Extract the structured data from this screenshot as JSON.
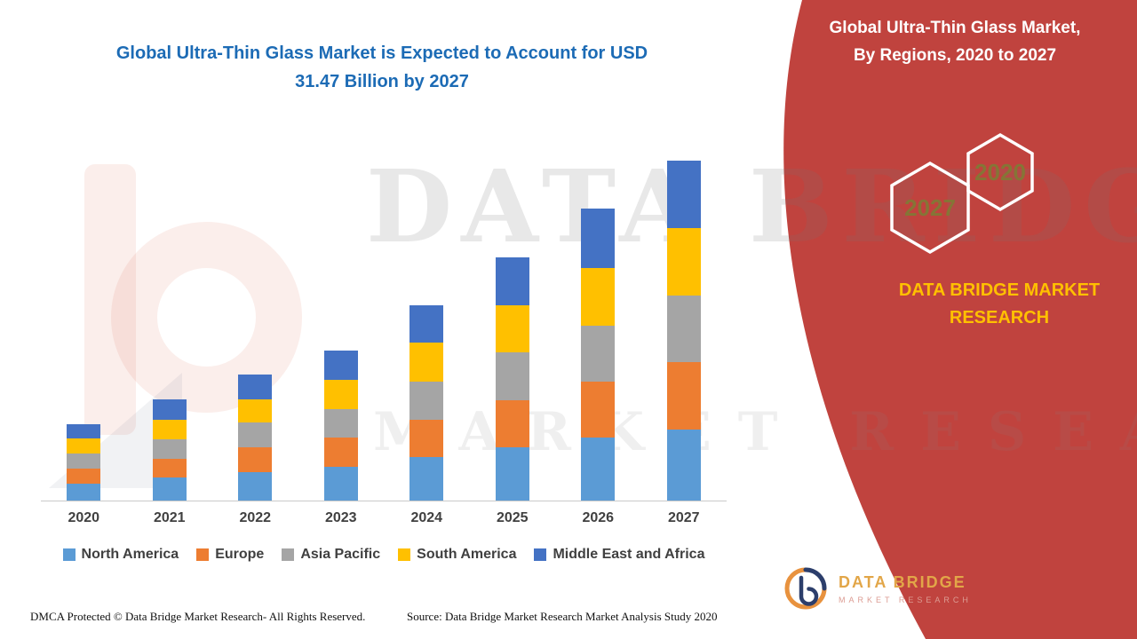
{
  "header": {
    "title_line1": "Global Ultra-Thin Glass Market is Expected to Account for USD",
    "title_line2": "31.47 Billion by 2027"
  },
  "side_panel": {
    "title_line1": "Global Ultra-Thin Glass Market,",
    "title_line2": "By Regions, 2020 to 2027",
    "hexagon_years": [
      "2027",
      "2020"
    ],
    "brand_line1": "DATA BRIDGE MARKET",
    "brand_line2": "RESEARCH",
    "logo_title": "DATA BRIDGE",
    "logo_subtitle": "MARKET RESEARCH",
    "bg_color": "#C0433E",
    "accent_yellow": "#FFC000",
    "hexagon_year_color": "#857536"
  },
  "watermark": {
    "line1": "DATA BRIDGE",
    "line2": "MARKET RESEARCH"
  },
  "footer": {
    "dmca": "DMCA Protected © Data Bridge Market Research- All Rights Reserved.",
    "source": "Source: Data Bridge Market Research Market Analysis Study 2020"
  },
  "chart_data": {
    "type": "bar",
    "stacked": true,
    "title": "Global Ultra-Thin Glass Market is Expected to Account for USD 31.47 Billion by 2027",
    "unit": "USD Billion",
    "total_2027_usd_billion": 31.47,
    "categories": [
      "2020",
      "2021",
      "2022",
      "2023",
      "2024",
      "2025",
      "2026",
      "2027"
    ],
    "series": [
      {
        "name": "North America",
        "color": "#5B9BD5",
        "values": [
          1.6,
          2.1,
          2.6,
          3.1,
          4.0,
          4.9,
          5.8,
          6.6
        ]
      },
      {
        "name": "Europe",
        "color": "#ED7D31",
        "values": [
          1.4,
          1.8,
          2.3,
          2.7,
          3.5,
          4.4,
          5.2,
          6.2
        ]
      },
      {
        "name": "Asia Pacific",
        "color": "#A5A5A5",
        "values": [
          1.4,
          1.8,
          2.3,
          2.7,
          3.5,
          4.4,
          5.2,
          6.2
        ]
      },
      {
        "name": "South America",
        "color": "#FFC000",
        "values": [
          1.4,
          1.8,
          2.2,
          2.7,
          3.6,
          4.4,
          5.3,
          6.2
        ]
      },
      {
        "name": "Middle East and Africa",
        "color": "#4472C4",
        "values": [
          1.3,
          1.9,
          2.3,
          2.7,
          3.5,
          4.4,
          5.5,
          6.27
        ]
      }
    ],
    "estimated_totals": [
      7.1,
      9.4,
      11.7,
      13.9,
      18.1,
      22.5,
      27.0,
      31.47
    ],
    "xlabel": "",
    "ylabel": "",
    "grid": false,
    "legend_position": "bottom",
    "y_axis_visible": false
  }
}
